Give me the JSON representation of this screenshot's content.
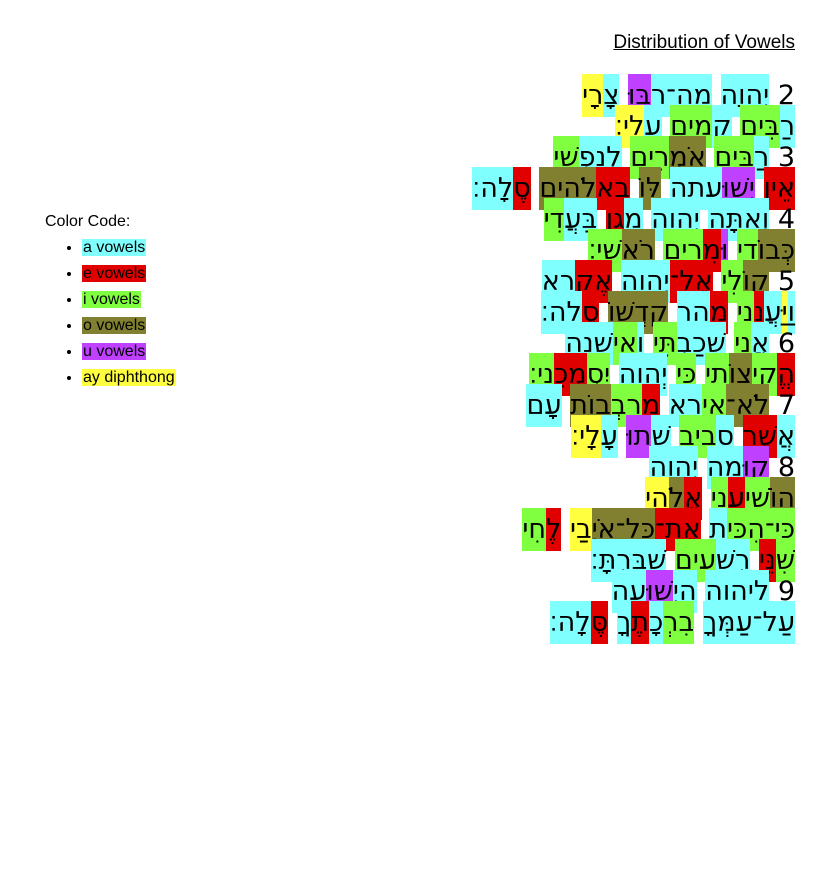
{
  "title": "Distribution of Vowels",
  "legend": {
    "heading": "Color Code:",
    "items": [
      {
        "label": "a vowels",
        "color": "#80ffff"
      },
      {
        "label": "e vowels",
        "color": "#e00000"
      },
      {
        "label": "i vowels",
        "color": "#80ff40"
      },
      {
        "label": "o vowels",
        "color": "#808030"
      },
      {
        "label": "u vowels",
        "color": "#c040ff"
      },
      {
        "label": "ay diphthong",
        "color": "#ffff40"
      }
    ]
  },
  "lines": [
    [
      [
        {
          "text": "2"
        }
      ],
      [
        {
          "text": "יְהוָה",
          "color": "#80ffff"
        }
      ],
      [
        {
          "text": "מָה־רַ",
          "color": "#80ffff"
        },
        {
          "text": "בּוּ",
          "color": "#c040ff"
        }
      ],
      [
        {
          "text": "צָ",
          "color": "#80ffff"
        },
        {
          "text": "רָי",
          "color": "#ffff40"
        }
      ]
    ],
    [
      [
        {
          "text": "רַ",
          "color": "#80ffff"
        },
        {
          "text": "בִּים",
          "color": "#80ff40"
        }
      ],
      [
        {
          "text": "קָ",
          "color": "#80ffff"
        },
        {
          "text": "מִים",
          "color": "#80ff40"
        }
      ],
      [
        {
          "text": "עָ",
          "color": "#80ffff"
        },
        {
          "text": "לָי׃",
          "color": "#ffff40"
        }
      ]
    ],
    [
      [
        {
          "text": "3"
        }
      ],
      [
        {
          "text": "רַ",
          "color": "#80ffff"
        },
        {
          "text": "בִּים",
          "color": "#80ff40"
        }
      ],
      [
        {
          "text": "אֹמְ",
          "color": "#808030"
        },
        {
          "text": "רִים",
          "color": "#80ff40"
        }
      ],
      [
        {
          "text": "לְנַפְ",
          "color": "#80ffff"
        },
        {
          "text": "שִׁי",
          "color": "#80ff40"
        }
      ]
    ],
    [
      [
        {
          "text": "אֵין",
          "color": "#e00000"
        }
      ],
      [
        {
          "text": "יְשׁוּ",
          "color": "#c040ff"
        },
        {
          "text": "עָתָה",
          "color": "#80ffff"
        }
      ],
      [
        {
          "text": "לּוֹ",
          "color": "#808030"
        }
      ],
      [
        {
          "text": "בֵא",
          "color": "#e00000"
        },
        {
          "text": "לֹהִים",
          "color": "#808030"
        }
      ],
      [
        {
          "text": "סֶ",
          "color": "#e00000"
        },
        {
          "text": "לָה׃",
          "color": "#80ffff"
        }
      ]
    ],
    [
      [
        {
          "text": "4"
        }
      ],
      [
        {
          "text": "וְאַתָּה",
          "color": "#80ffff"
        }
      ],
      [
        {
          "text": "יְהוָה",
          "color": "#80ffff"
        }
      ],
      [
        {
          "text": "מָ",
          "color": "#80ffff"
        },
        {
          "text": "גֵן",
          "color": "#e00000"
        }
      ],
      [
        {
          "text": "בַּעֲ",
          "color": "#80ffff"
        },
        {
          "text": "דִי",
          "color": "#80ff40"
        }
      ]
    ],
    [
      [
        {
          "text": "כְּבוֹ",
          "color": "#808030"
        },
        {
          "text": "דִי",
          "color": "#80ff40"
        }
      ],
      [
        {
          "text": "וּ",
          "color": "#c040ff"
        },
        {
          "text": "מֵ",
          "color": "#e00000"
        },
        {
          "text": "רִים",
          "color": "#80ff40"
        }
      ],
      [
        {
          "text": "רֹא",
          "color": "#808030"
        },
        {
          "text": "שִׁי׃",
          "color": "#80ff40"
        }
      ]
    ],
    [
      [
        {
          "text": "5"
        }
      ],
      [
        {
          "text": "קוֹ",
          "color": "#808030"
        },
        {
          "text": "לִי",
          "color": "#80ff40"
        }
      ],
      [
        {
          "text": "אֶל־",
          "color": "#e00000"
        },
        {
          "text": "יְהוָה",
          "color": "#80ffff"
        }
      ],
      [
        {
          "text": "אֶק",
          "color": "#e00000"
        },
        {
          "text": "רָא",
          "color": "#80ffff"
        }
      ]
    ],
    [
      [
        {
          "text": "וַ",
          "color": "#80ffff"
        },
        {
          "text": "יַּ",
          "color": "#ffff40"
        },
        {
          "text": "עֲ",
          "color": "#80ffff"
        },
        {
          "text": "נֵ",
          "color": "#e00000"
        },
        {
          "text": "נִי",
          "color": "#80ff40"
        }
      ],
      [
        {
          "text": "מֵ",
          "color": "#e00000"
        },
        {
          "text": "הַר",
          "color": "#80ffff"
        }
      ],
      [
        {
          "text": "קָדְשׁוֹ",
          "color": "#808030"
        }
      ],
      [
        {
          "text": "סֶ",
          "color": "#e00000"
        },
        {
          "text": "לָה׃",
          "color": "#80ffff"
        }
      ]
    ],
    [
      [
        {
          "text": "6"
        }
      ],
      [
        {
          "text": "אֲ",
          "color": "#80ffff"
        },
        {
          "text": "נִי",
          "color": "#80ff40"
        }
      ],
      [
        {
          "text": "שָׁכַבְ",
          "color": "#80ffff"
        },
        {
          "text": "תִּי",
          "color": "#80ff40"
        }
      ],
      [
        {
          "text": "וָ",
          "color": "#80ffff"
        },
        {
          "text": "אִי",
          "color": "#80ff40"
        },
        {
          "text": "שָׁנָה",
          "color": "#80ffff"
        }
      ]
    ],
    [
      [
        {
          "text": "הֱ",
          "color": "#e00000"
        },
        {
          "text": "קִי",
          "color": "#80ff40"
        },
        {
          "text": "צוֹ",
          "color": "#808030"
        },
        {
          "text": "תִי",
          "color": "#80ff40"
        }
      ],
      [
        {
          "text": "כִּי",
          "color": "#80ff40"
        }
      ],
      [
        {
          "text": "יְהוָה",
          "color": "#80ffff"
        }
      ],
      [
        {
          "text": "יִסְ",
          "color": "#80ff40"
        },
        {
          "text": "מְכֵ",
          "color": "#e00000"
        },
        {
          "text": "נִי׃",
          "color": "#80ff40"
        }
      ]
    ],
    [
      [
        {
          "text": "7"
        }
      ],
      [
        {
          "text": "לֹא־",
          "color": "#808030"
        },
        {
          "text": "אִי",
          "color": "#80ff40"
        },
        {
          "text": "רָא",
          "color": "#80ffff"
        }
      ],
      [
        {
          "text": "מֵ",
          "color": "#e00000"
        },
        {
          "text": "רִבְ",
          "color": "#80ff40"
        },
        {
          "text": "בוֹת",
          "color": "#808030"
        }
      ],
      [
        {
          "text": "עָם",
          "color": "#80ffff"
        }
      ]
    ],
    [
      [
        {
          "text": "אֲ",
          "color": "#80ffff"
        },
        {
          "text": "שֶׁר",
          "color": "#e00000"
        }
      ],
      [
        {
          "text": "סָ",
          "color": "#80ffff"
        },
        {
          "text": "בִיב",
          "color": "#80ff40"
        }
      ],
      [
        {
          "text": "שָׁ",
          "color": "#80ffff"
        },
        {
          "text": "תוּ",
          "color": "#c040ff"
        }
      ],
      [
        {
          "text": "עָ",
          "color": "#80ffff"
        },
        {
          "text": "לָי׃",
          "color": "#ffff40"
        }
      ]
    ],
    [
      [
        {
          "text": "8"
        }
      ],
      [
        {
          "text": "קוּ",
          "color": "#c040ff"
        },
        {
          "text": "מָה",
          "color": "#80ffff"
        }
      ],
      [
        {
          "text": "יְהוָה",
          "color": "#80ffff"
        }
      ]
    ],
    [
      [
        {
          "text": "הוֹ",
          "color": "#808030"
        },
        {
          "text": "שִׁי",
          "color": "#80ff40"
        },
        {
          "text": "עֵ",
          "color": "#e00000"
        },
        {
          "text": "נִי",
          "color": "#80ff40"
        }
      ],
      [
        {
          "text": "אֱ",
          "color": "#e00000"
        },
        {
          "text": "לֹ",
          "color": "#808030"
        },
        {
          "text": "הַי",
          "color": "#ffff40"
        }
      ]
    ],
    [
      [
        {
          "text": "כִּי־הִכִּי",
          "color": "#80ff40"
        },
        {
          "text": "תָ",
          "color": "#80ffff"
        }
      ],
      [
        {
          "text": "אֶת־",
          "color": "#e00000"
        },
        {
          "text": "כָּל־אֹיְ",
          "color": "#808030"
        },
        {
          "text": "בַי",
          "color": "#ffff40"
        }
      ],
      [
        {
          "text": "לֶ",
          "color": "#e00000"
        },
        {
          "text": "חִי",
          "color": "#80ff40"
        }
      ]
    ],
    [
      [
        {
          "text": "שִׁ",
          "color": "#80ff40"
        },
        {
          "text": "נֵּי",
          "color": "#e00000"
        }
      ],
      [
        {
          "text": "רְשָׁ",
          "color": "#80ffff"
        },
        {
          "text": "עִים",
          "color": "#80ff40"
        }
      ],
      [
        {
          "text": "שִׁבַּרְתָּ׃",
          "color": "#80ffff"
        }
      ]
    ],
    [
      [
        {
          "text": "9"
        }
      ],
      [
        {
          "text": "לַיהוָה",
          "color": "#80ffff"
        }
      ],
      [
        {
          "text": "הַיְ",
          "color": "#80ffff"
        },
        {
          "text": "שׁוּ",
          "color": "#c040ff"
        },
        {
          "text": "עָה",
          "color": "#80ffff"
        }
      ]
    ],
    [
      [
        {
          "text": "עַל־עַמְּךָ",
          "color": "#80ffff"
        }
      ],
      [
        {
          "text": "בִרְ",
          "color": "#80ff40"
        },
        {
          "text": "כָ",
          "color": "#80ffff"
        },
        {
          "text": "תֶ",
          "color": "#e00000"
        },
        {
          "text": "ךָ",
          "color": "#80ffff"
        }
      ],
      [
        {
          "text": "סֶּ",
          "color": "#e00000"
        },
        {
          "text": "לָה׃",
          "color": "#80ffff"
        }
      ]
    ]
  ]
}
